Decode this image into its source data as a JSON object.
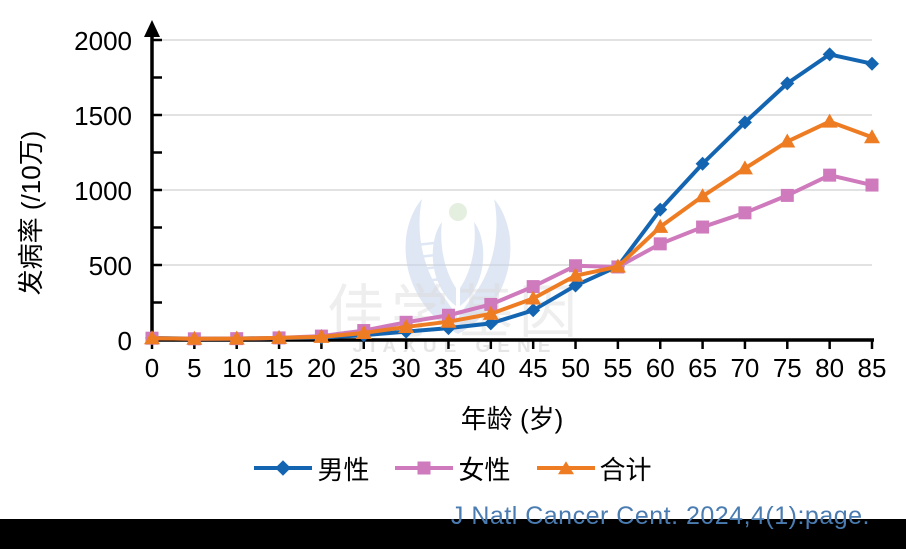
{
  "chart_data": {
    "type": "line",
    "title": "",
    "xlabel": "年龄 (岁)",
    "ylabel": "发病率 (/10万)",
    "categories": [
      "0",
      "5",
      "10",
      "15",
      "20",
      "25",
      "30",
      "35",
      "40",
      "45",
      "50",
      "55",
      "60",
      "65",
      "70",
      "75",
      "80",
      "85"
    ],
    "series": [
      {
        "name": "男性",
        "marker": "diamond",
        "color": "#1465b1",
        "values": [
          13,
          9,
          10,
          13,
          17,
          32,
          56,
          79,
          111,
          198,
          363,
          491,
          869,
          1175,
          1451,
          1711,
          1904,
          1842
        ]
      },
      {
        "name": "女性",
        "marker": "square",
        "color": "#ce7abc",
        "values": [
          12,
          8,
          9,
          14,
          26,
          63,
          118,
          165,
          237,
          356,
          495,
          487,
          641,
          753,
          848,
          964,
          1099,
          1033
        ]
      },
      {
        "name": "合计",
        "marker": "triangle",
        "color": "#ee7c23",
        "values": [
          12,
          8,
          9,
          14,
          21,
          47,
          87,
          122,
          174,
          277,
          429,
          489,
          754,
          958,
          1144,
          1323,
          1456,
          1352
        ]
      }
    ],
    "ylim": [
      0,
      2000
    ],
    "y_major_tick": 500,
    "y_minor_tick": 250,
    "y_ticks": [
      "0",
      "500",
      "1000",
      "1500",
      "2000"
    ],
    "grid": "horizontal",
    "grid_color": "#d9d9d9",
    "axis_color": "#000000",
    "legend_position": "bottom"
  },
  "watermark": {
    "cn": "佳学基因",
    "en": "JIAXUE GENE"
  },
  "citation": {
    "text": "J Natl Cancer Cent. 2024,4(1):page.",
    "color": "#4a7cb2"
  }
}
